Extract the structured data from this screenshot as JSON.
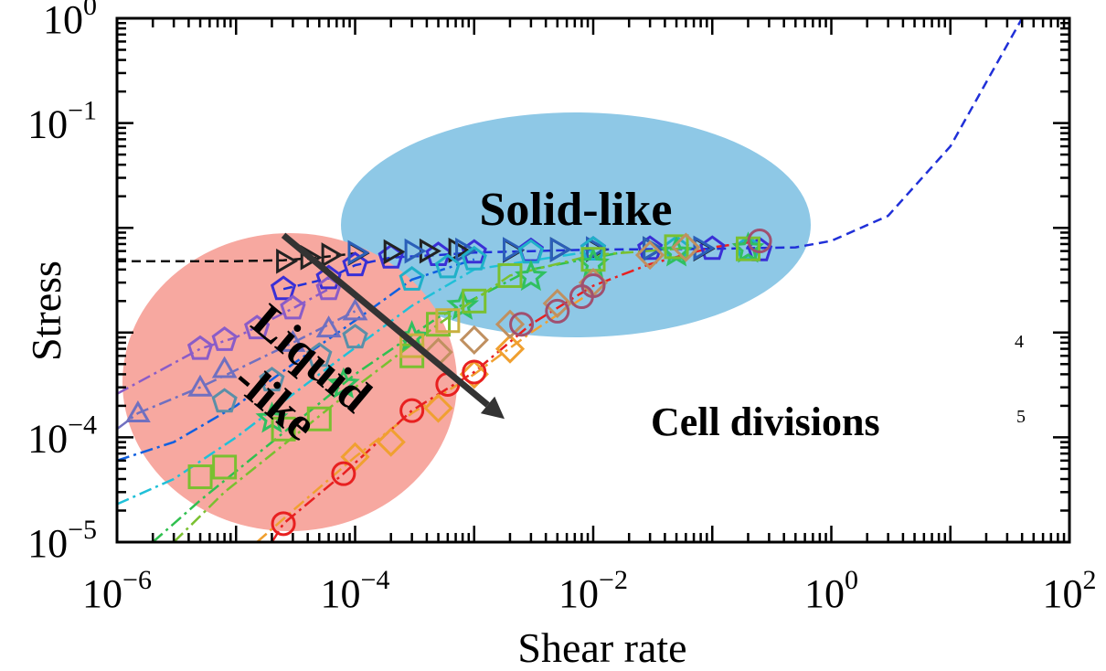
{
  "chart_data": {
    "type": "scatter",
    "xscale": "log",
    "yscale": "log",
    "xlim": [
      1e-06,
      100
    ],
    "ylim": [
      1e-05,
      1
    ],
    "xlabel": "Shear rate",
    "ylabel": "Stress",
    "x_ticks": [
      {
        "value": 1e-06,
        "base": "10",
        "exp": "−6"
      },
      {
        "value": 0.0001,
        "base": "10",
        "exp": "−4"
      },
      {
        "value": 0.01,
        "base": "10",
        "exp": "−2"
      },
      {
        "value": 1,
        "base": "10",
        "exp": "0"
      },
      {
        "value": 100,
        "base": "10",
        "exp": "2"
      }
    ],
    "y_ticks": [
      {
        "value": 1e-05,
        "base": "10",
        "exp": "−5"
      },
      {
        "value": 0.0001,
        "base": "10",
        "exp": "−4"
      },
      {
        "value": 0.1,
        "base": "10",
        "exp": "−1"
      },
      {
        "value": 1,
        "base": "10",
        "exp": "0"
      }
    ],
    "regions": [
      {
        "label": "Solid-like",
        "color": "#8ec8e6"
      },
      {
        "label_lines": [
          "Liquid",
          "-like"
        ],
        "color": "#f7a8a0"
      }
    ],
    "annotations": [
      {
        "text": "Cell divisions",
        "arrow_from": [
          2.5e-05,
          0.0085
        ],
        "arrow_to": [
          0.0018,
          0.00015
        ]
      }
    ],
    "stray_marks": [
      "4",
      "5"
    ],
    "series": [
      {
        "color": "#3a2fd6",
        "marker": "pentagon",
        "x": [
          2.5e-05,
          6e-05,
          0.0001,
          0.0002,
          0.0005,
          0.001,
          0.003,
          0.01,
          0.03,
          0.1,
          0.25
        ],
        "y": [
          0.0026,
          0.0033,
          0.0044,
          0.0052,
          0.0055,
          0.0058,
          0.006,
          0.0062,
          0.0063,
          0.0063,
          0.0061
        ]
      },
      {
        "color": "#222222",
        "marker": "triangle-right",
        "x": [
          2.5e-05,
          4e-05,
          6e-05,
          0.0001,
          0.0002,
          0.0004,
          0.0007,
          0.002,
          0.005,
          0.01,
          0.03,
          0.08
        ],
        "y": [
          0.0048,
          0.0052,
          0.0055,
          0.0057,
          0.0059,
          0.006,
          0.0061,
          0.0061,
          0.0062,
          0.0062,
          0.0063,
          0.0063
        ]
      },
      {
        "color": "#2b5fb8",
        "marker": "triangle-right",
        "x": [
          0.0001,
          0.0003,
          0.0008,
          0.002,
          0.005,
          0.01,
          0.03,
          0.08
        ],
        "y": [
          0.0058,
          0.006,
          0.0061,
          0.0062,
          0.0062,
          0.0063,
          0.0063,
          0.0064
        ]
      },
      {
        "color": "#8a5cc8",
        "marker": "pentagon",
        "x": [
          5e-06,
          8e-06,
          1.5e-05,
          3e-05,
          6e-05
        ],
        "y": [
          0.0007,
          0.00085,
          0.0011,
          0.0017,
          0.0026
        ]
      },
      {
        "color": "#7070c0",
        "marker": "triangle-up",
        "x": [
          1.5e-06,
          5e-06,
          8e-06,
          3e-05,
          6e-05,
          0.0001
        ],
        "y": [
          0.00017,
          0.0003,
          0.00045,
          0.0008,
          0.0011,
          0.0016
        ]
      },
      {
        "color": "#5a8fa8",
        "marker": "pentagon",
        "x": [
          8e-06,
          2e-05,
          5e-05,
          0.0001
        ],
        "y": [
          0.00022,
          0.00035,
          0.0006,
          0.0009
        ]
      },
      {
        "color": "#20b0c8",
        "marker": "pentagon",
        "x": [
          0.0003,
          0.0006,
          0.001,
          0.003,
          0.01,
          0.05,
          0.2
        ],
        "y": [
          0.0032,
          0.0042,
          0.005,
          0.0058,
          0.0062,
          0.0063,
          0.0063
        ]
      },
      {
        "color": "#30c060",
        "marker": "star",
        "x": [
          2e-05,
          8e-05,
          0.0003,
          0.0008,
          0.003,
          0.01,
          0.05,
          0.2
        ],
        "y": [
          0.00015,
          0.00032,
          0.0009,
          0.0018,
          0.0034,
          0.0045,
          0.0058,
          0.0063
        ]
      },
      {
        "color": "#7ac030",
        "marker": "square",
        "x": [
          5e-06,
          8e-06,
          2.5e-05,
          5e-05,
          0.0003,
          0.0005,
          0.001,
          0.002,
          0.01,
          0.05,
          0.2
        ],
        "y": [
          4.2e-05,
          5.2e-05,
          0.00012,
          0.00015,
          0.0006,
          0.0012,
          0.002,
          0.0035,
          0.005,
          0.0066,
          0.0063
        ]
      },
      {
        "color": "#c8b040",
        "marker": "square",
        "x": [
          0.0003,
          0.0006
        ],
        "y": [
          0.00075,
          0.0013
        ]
      },
      {
        "color": "#f0a030",
        "marker": "diamond",
        "x": [
          0.0001,
          0.0002,
          0.0005,
          0.001,
          0.002
        ],
        "y": [
          6.5e-05,
          9e-05,
          0.00019,
          0.0004,
          0.0007
        ]
      },
      {
        "color": "#c09060",
        "marker": "diamond",
        "x": [
          0.0005,
          0.001,
          0.002,
          0.005,
          0.01,
          0.03,
          0.06
        ],
        "y": [
          0.00065,
          0.00085,
          0.0012,
          0.0019,
          0.003,
          0.0055,
          0.0065
        ]
      },
      {
        "color": "#e82020",
        "marker": "circle",
        "x": [
          2.5e-05,
          8e-05,
          0.0003,
          0.0006,
          0.001
        ],
        "y": [
          1.5e-05,
          4.5e-05,
          0.00018,
          0.00032,
          0.00042
        ]
      },
      {
        "color": "#a05070",
        "marker": "circle",
        "x": [
          0.0025,
          0.005,
          0.008,
          0.01,
          0.25
        ],
        "y": [
          0.0012,
          0.0016,
          0.0022,
          0.0028,
          0.0075
        ]
      }
    ],
    "curves": [
      {
        "color": "#2030d8",
        "style": "dashed",
        "x": [
          2.5e-05,
          6e-05,
          0.0001,
          0.0002,
          0.0005,
          0.001,
          0.01,
          0.1,
          0.5,
          1,
          3,
          10,
          40
        ],
        "y": [
          0.0026,
          0.0033,
          0.0044,
          0.0052,
          0.0055,
          0.0058,
          0.0062,
          0.0063,
          0.0065,
          0.0075,
          0.013,
          0.06,
          1
        ]
      },
      {
        "color": "#111111",
        "style": "dashed",
        "x": [
          1e-06,
          1e-05,
          2.5e-05,
          5e-05,
          0.0001
        ],
        "y": [
          0.0048,
          0.0048,
          0.0049,
          0.0052,
          0.0057
        ]
      },
      {
        "color": "#8a5cc8",
        "style": "dashdot",
        "x": [
          1e-06,
          5e-06,
          1e-05,
          3e-05,
          6e-05
        ],
        "y": [
          0.00026,
          0.0007,
          0.0009,
          0.0017,
          0.0026
        ]
      },
      {
        "color": "#7070c0",
        "style": "dashdot",
        "x": [
          1e-06,
          1.5e-06,
          5e-06,
          3e-05,
          0.0001
        ],
        "y": [
          0.00012,
          0.00017,
          0.0003,
          0.0008,
          0.0016
        ]
      },
      {
        "color": "#1060e0",
        "style": "dashdot",
        "x": [
          1e-06,
          3e-06,
          1e-05,
          3e-05,
          0.0001,
          0.0003,
          0.001
        ],
        "y": [
          6e-05,
          9e-05,
          0.0002,
          0.0005,
          0.0013,
          0.0032,
          0.005
        ]
      },
      {
        "color": "#20c0d8",
        "style": "dashdot",
        "x": [
          1e-06,
          3e-06,
          1e-05,
          5e-05,
          0.0003,
          0.001,
          0.01
        ],
        "y": [
          2.3e-05,
          4e-05,
          0.0001,
          0.0004,
          0.0018,
          0.004,
          0.006
        ]
      },
      {
        "color": "#30c050",
        "style": "dashdot",
        "x": [
          2e-06,
          5e-06,
          2e-05,
          0.0001,
          0.0005,
          0.003,
          0.02
        ],
        "y": [
          1e-05,
          2.5e-05,
          9e-05,
          0.0004,
          0.0014,
          0.004,
          0.006
        ]
      },
      {
        "color": "#7ac030",
        "style": "dashdot",
        "x": [
          3e-06,
          8e-06,
          3e-05,
          0.0001,
          0.0005,
          0.002,
          0.01,
          0.06
        ],
        "y": [
          1e-05,
          3e-05,
          0.0001,
          0.0003,
          0.0012,
          0.0035,
          0.0055,
          0.0064
        ]
      },
      {
        "color": "#f0a030",
        "style": "dashdot",
        "x": [
          1.5e-05,
          3e-05,
          0.0001,
          0.0003,
          0.001,
          0.003,
          0.01
        ],
        "y": [
          1e-05,
          2e-05,
          6.5e-05,
          0.00017,
          0.0004,
          0.001,
          0.0025
        ]
      },
      {
        "color": "#e82020",
        "style": "dashdot",
        "x": [
          2e-05,
          2.5e-05,
          8e-05,
          0.0003,
          0.001,
          0.003,
          0.01,
          0.03,
          0.1,
          0.25
        ],
        "y": [
          1e-05,
          1.5e-05,
          4.5e-05,
          0.00018,
          0.00042,
          0.0012,
          0.0028,
          0.0045,
          0.0065,
          0.0075
        ]
      }
    ]
  }
}
